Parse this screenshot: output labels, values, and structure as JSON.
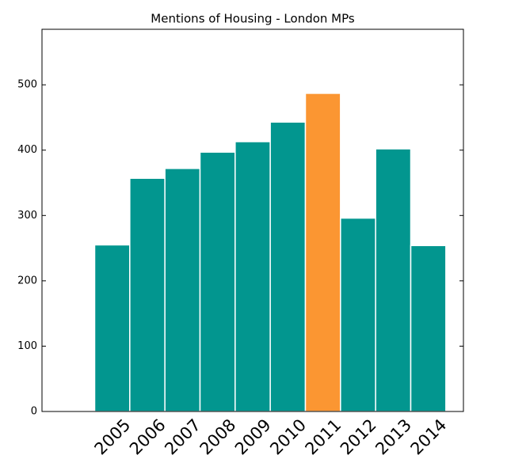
{
  "chart_data": {
    "type": "bar",
    "title": "Mentions of Housing - London MPs",
    "categories": [
      "2005",
      "2006",
      "2007",
      "2008",
      "2009",
      "2010",
      "2011",
      "2012",
      "2013",
      "2014"
    ],
    "values": [
      255,
      357,
      372,
      397,
      413,
      443,
      487,
      296,
      402,
      254
    ],
    "colors": [
      "#02968f",
      "#02968f",
      "#02968f",
      "#02968f",
      "#02968f",
      "#02968f",
      "#fb9632",
      "#02968f",
      "#02968f",
      "#02968f"
    ],
    "ylim": [
      0,
      585
    ],
    "yticks": [
      0,
      100,
      200,
      300,
      400,
      500
    ]
  }
}
